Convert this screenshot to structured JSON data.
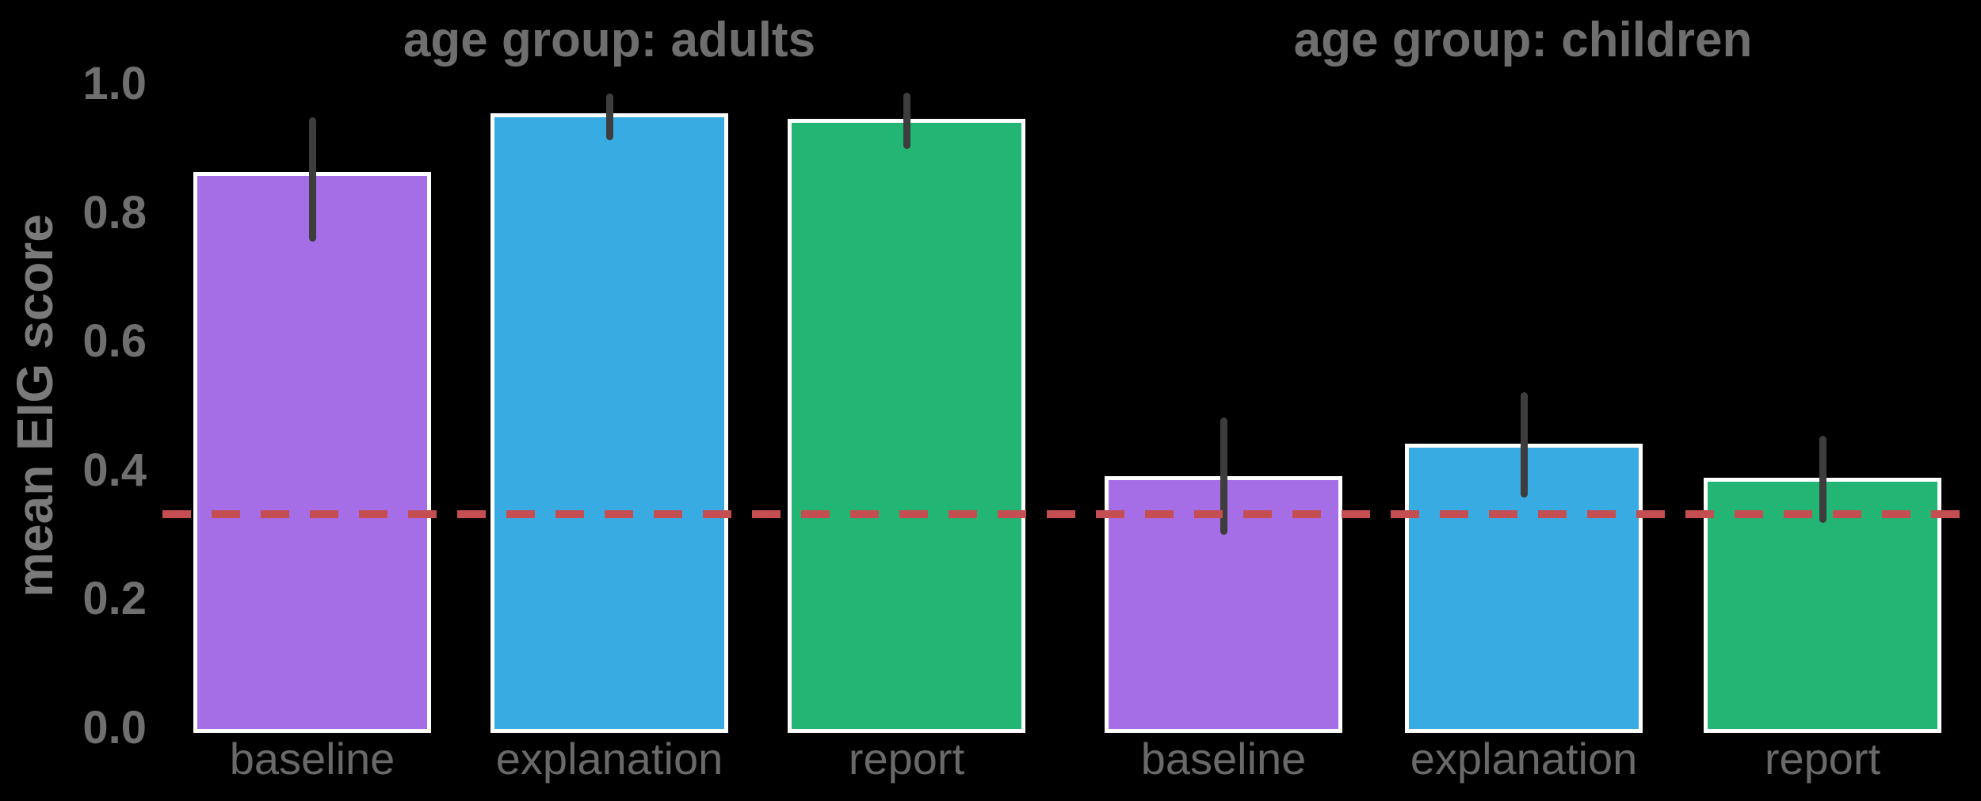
{
  "chart_data": {
    "type": "bar",
    "title": "",
    "ylabel": "mean EIG score",
    "xlabel": "",
    "ylim": [
      0.0,
      1.0
    ],
    "yticks": [
      0.0,
      0.2,
      0.4,
      0.6,
      0.8,
      1.0
    ],
    "grid": false,
    "legend": null,
    "background_color": "#000000",
    "text_color": "#6f6f6f",
    "bar_edge_color": "#ffffff",
    "error_bar_color": "#3d3d3d",
    "bar_colors": [
      "#a56de6",
      "#38ace2",
      "#22b573"
    ],
    "reference_line": {
      "value": 0.333,
      "color": "#c44e52",
      "style": "dashed"
    },
    "facets": [
      {
        "title": "age group: adults",
        "categories": [
          "baseline",
          "explanation",
          "report"
        ],
        "values": [
          0.865,
          0.956,
          0.947
        ],
        "ci_low": [
          0.757,
          0.914,
          0.9
        ],
        "ci_high": [
          0.95,
          0.986,
          0.988
        ]
      },
      {
        "title": "age group: children",
        "categories": [
          "baseline",
          "explanation",
          "report"
        ],
        "values": [
          0.392,
          0.443,
          0.39
        ],
        "ci_low": [
          0.301,
          0.359,
          0.32
        ],
        "ci_high": [
          0.483,
          0.523,
          0.455
        ]
      }
    ]
  }
}
